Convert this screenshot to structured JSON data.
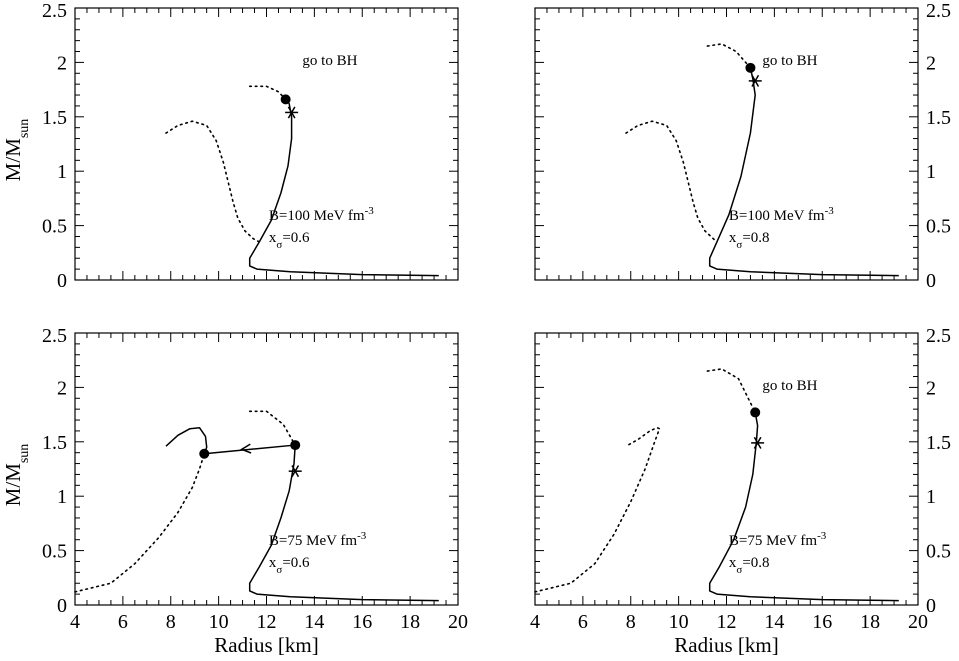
{
  "chart_data": {
    "type": "line",
    "xlabel": "Radius [km]",
    "ylabel": "M/M",
    "ylabel_sub": "sun",
    "xlim": [
      4,
      20
    ],
    "ylim": [
      0,
      2.5
    ],
    "xticks": [
      "4",
      "6",
      "8",
      "10",
      "12",
      "14",
      "16",
      "18",
      "20"
    ],
    "yticks": [
      "0",
      "0.5",
      "1",
      "1.5",
      "2",
      "2.5"
    ],
    "panels": [
      {
        "id": "top-left",
        "label_B": "B=100 MeV fm",
        "label_B_exp": "-3",
        "label_x": "x",
        "label_x_sub": "σ",
        "label_x_val": "=0.6",
        "note": "go to BH",
        "solid": [
          [
            19.2,
            0.04
          ],
          [
            16,
            0.05
          ],
          [
            13,
            0.075
          ],
          [
            11.6,
            0.1
          ],
          [
            11.3,
            0.13
          ],
          [
            11.3,
            0.2
          ],
          [
            11.7,
            0.35
          ],
          [
            12.2,
            0.55
          ],
          [
            12.6,
            0.8
          ],
          [
            12.9,
            1.05
          ],
          [
            13.05,
            1.3
          ],
          [
            13.05,
            1.5
          ],
          [
            12.95,
            1.62
          ],
          [
            12.8,
            1.66
          ]
        ],
        "dotted_hadronic": [
          [
            11.3,
            1.78
          ],
          [
            12.0,
            1.78
          ],
          [
            12.5,
            1.73
          ],
          [
            12.8,
            1.66
          ]
        ],
        "dotted_quark": [
          [
            7.8,
            1.35
          ],
          [
            8.3,
            1.42
          ],
          [
            8.9,
            1.46
          ],
          [
            9.5,
            1.42
          ],
          [
            9.9,
            1.28
          ],
          [
            10.2,
            1.08
          ],
          [
            10.4,
            0.9
          ],
          [
            10.6,
            0.72
          ],
          [
            10.8,
            0.57
          ],
          [
            11.1,
            0.45
          ],
          [
            11.45,
            0.38
          ],
          [
            11.7,
            0.35
          ]
        ],
        "marker_circle": [
          12.8,
          1.66
        ],
        "marker_star": [
          13.05,
          1.54
        ],
        "arrow": null
      },
      {
        "id": "top-right",
        "label_B": "B=100 MeV fm",
        "label_B_exp": "-3",
        "label_x": "x",
        "label_x_sub": "σ",
        "label_x_val": "=0.8",
        "note": "go to BH",
        "solid": [
          [
            19.2,
            0.04
          ],
          [
            16,
            0.05
          ],
          [
            13,
            0.075
          ],
          [
            11.6,
            0.1
          ],
          [
            11.3,
            0.13
          ],
          [
            11.3,
            0.2
          ],
          [
            11.6,
            0.35
          ],
          [
            12.1,
            0.6
          ],
          [
            12.6,
            0.95
          ],
          [
            13.0,
            1.35
          ],
          [
            13.2,
            1.7
          ],
          [
            13.1,
            1.85
          ],
          [
            13.0,
            1.95
          ]
        ],
        "dotted_hadronic": [
          [
            11.2,
            2.15
          ],
          [
            11.8,
            2.17
          ],
          [
            12.4,
            2.1
          ],
          [
            13.0,
            1.95
          ]
        ],
        "dotted_quark": [
          [
            7.8,
            1.35
          ],
          [
            8.3,
            1.42
          ],
          [
            8.9,
            1.46
          ],
          [
            9.5,
            1.42
          ],
          [
            9.9,
            1.28
          ],
          [
            10.2,
            1.08
          ],
          [
            10.4,
            0.9
          ],
          [
            10.6,
            0.72
          ],
          [
            10.8,
            0.57
          ],
          [
            11.1,
            0.45
          ],
          [
            11.45,
            0.38
          ],
          [
            11.6,
            0.35
          ]
        ],
        "marker_circle": [
          13.0,
          1.95
        ],
        "marker_star": [
          13.2,
          1.83
        ],
        "arrow": null
      },
      {
        "id": "bottom-left",
        "label_B": "B=75 MeV fm",
        "label_B_exp": "-3",
        "label_x": "x",
        "label_x_sub": "σ",
        "label_x_val": "=0.6",
        "note": "",
        "solid": [
          [
            19.2,
            0.04
          ],
          [
            16,
            0.05
          ],
          [
            13,
            0.075
          ],
          [
            11.6,
            0.1
          ],
          [
            11.3,
            0.13
          ],
          [
            11.3,
            0.2
          ],
          [
            11.7,
            0.35
          ],
          [
            12.2,
            0.55
          ],
          [
            12.6,
            0.8
          ],
          [
            12.95,
            1.05
          ],
          [
            13.15,
            1.3
          ],
          [
            13.2,
            1.47
          ]
        ],
        "solid_quark": [
          [
            7.8,
            1.46
          ],
          [
            8.3,
            1.56
          ],
          [
            8.8,
            1.62
          ],
          [
            9.2,
            1.63
          ],
          [
            9.45,
            1.55
          ],
          [
            9.5,
            1.45
          ],
          [
            9.4,
            1.39
          ]
        ],
        "dotted_hadronic": [
          [
            11.3,
            1.78
          ],
          [
            12.0,
            1.78
          ],
          [
            12.7,
            1.66
          ],
          [
            13.2,
            1.47
          ]
        ],
        "dotted_quark": [
          [
            4.0,
            0.12
          ],
          [
            5.5,
            0.2
          ],
          [
            6.5,
            0.38
          ],
          [
            7.5,
            0.62
          ],
          [
            8.3,
            0.85
          ],
          [
            8.9,
            1.08
          ],
          [
            9.2,
            1.25
          ],
          [
            9.4,
            1.39
          ]
        ],
        "marker_circle": [
          13.2,
          1.47
        ],
        "marker_circle2": [
          9.4,
          1.39
        ],
        "marker_star": [
          13.2,
          1.23
        ],
        "arrow": {
          "from": [
            13.2,
            1.47
          ],
          "to": [
            9.4,
            1.39
          ]
        }
      },
      {
        "id": "bottom-right",
        "label_B": "B=75 MeV fm",
        "label_B_exp": "-3",
        "label_x": "x",
        "label_x_sub": "σ",
        "label_x_val": "=0.8",
        "note": "go to BH",
        "solid": [
          [
            19.2,
            0.04
          ],
          [
            16,
            0.05
          ],
          [
            13,
            0.075
          ],
          [
            11.6,
            0.1
          ],
          [
            11.3,
            0.13
          ],
          [
            11.3,
            0.2
          ],
          [
            11.7,
            0.35
          ],
          [
            12.3,
            0.6
          ],
          [
            12.8,
            0.9
          ],
          [
            13.1,
            1.2
          ],
          [
            13.25,
            1.5
          ],
          [
            13.3,
            1.65
          ],
          [
            13.2,
            1.77
          ]
        ],
        "dotted_hadronic": [
          [
            11.2,
            2.15
          ],
          [
            11.8,
            2.17
          ],
          [
            12.5,
            2.08
          ],
          [
            13.2,
            1.77
          ]
        ],
        "dotted_quark": [
          [
            4.0,
            0.12
          ],
          [
            5.5,
            0.2
          ],
          [
            6.5,
            0.38
          ],
          [
            7.3,
            0.65
          ],
          [
            8.0,
            0.95
          ],
          [
            8.6,
            1.25
          ],
          [
            9.0,
            1.5
          ],
          [
            9.2,
            1.62
          ],
          [
            9.1,
            1.63
          ],
          [
            8.8,
            1.6
          ],
          [
            8.3,
            1.52
          ],
          [
            7.8,
            1.46
          ]
        ],
        "marker_circle": [
          13.2,
          1.77
        ],
        "marker_star": [
          13.3,
          1.49
        ],
        "arrow": null
      }
    ]
  }
}
